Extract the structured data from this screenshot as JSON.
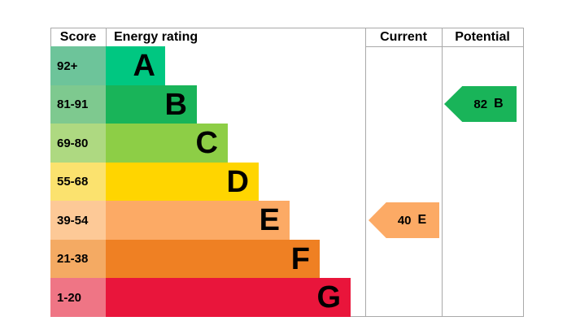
{
  "header": {
    "score": "Score",
    "energy_rating": "Energy rating",
    "current": "Current",
    "potential": "Potential"
  },
  "bands": [
    {
      "letter": "A",
      "score_range": "92+",
      "bar_color": "#00c781",
      "score_cell_color": "#6dc49a"
    },
    {
      "letter": "B",
      "score_range": "81-91",
      "bar_color": "#19b459",
      "score_cell_color": "#7ec98f"
    },
    {
      "letter": "C",
      "score_range": "69-80",
      "bar_color": "#8dce46",
      "score_cell_color": "#aed981"
    },
    {
      "letter": "D",
      "score_range": "55-68",
      "bar_color": "#ffd500",
      "score_cell_color": "#fbe26e"
    },
    {
      "letter": "E",
      "score_range": "39-54",
      "bar_color": "#fcaa65",
      "score_cell_color": "#fdc997"
    },
    {
      "letter": "F",
      "score_range": "21-38",
      "bar_color": "#ef8023",
      "score_cell_color": "#f4aa63"
    },
    {
      "letter": "G",
      "score_range": "1-20",
      "bar_color": "#e9153b",
      "score_cell_color": "#ef7585"
    }
  ],
  "current": {
    "value": "40",
    "letter": "E",
    "color": "#fcaa65"
  },
  "potential": {
    "value": "82",
    "letter": "B",
    "color": "#19b459"
  },
  "border_color": "#a9a9a9",
  "chart_data": {
    "type": "bar",
    "title": "Energy rating",
    "categories": [
      "A",
      "B",
      "C",
      "D",
      "E",
      "F",
      "G"
    ],
    "score_ranges": [
      "92+",
      "81-91",
      "69-80",
      "55-68",
      "39-54",
      "21-38",
      "1-20"
    ],
    "bar_lengths_relative": [
      1,
      2,
      3,
      4,
      5,
      6,
      7
    ],
    "band_colors": [
      "#00c781",
      "#19b459",
      "#8dce46",
      "#ffd500",
      "#fcaa65",
      "#ef8023",
      "#e9153b"
    ],
    "current": {
      "score": 40,
      "rating": "E"
    },
    "potential": {
      "score": 82,
      "rating": "B"
    },
    "grid": false,
    "legend_position": "none"
  }
}
